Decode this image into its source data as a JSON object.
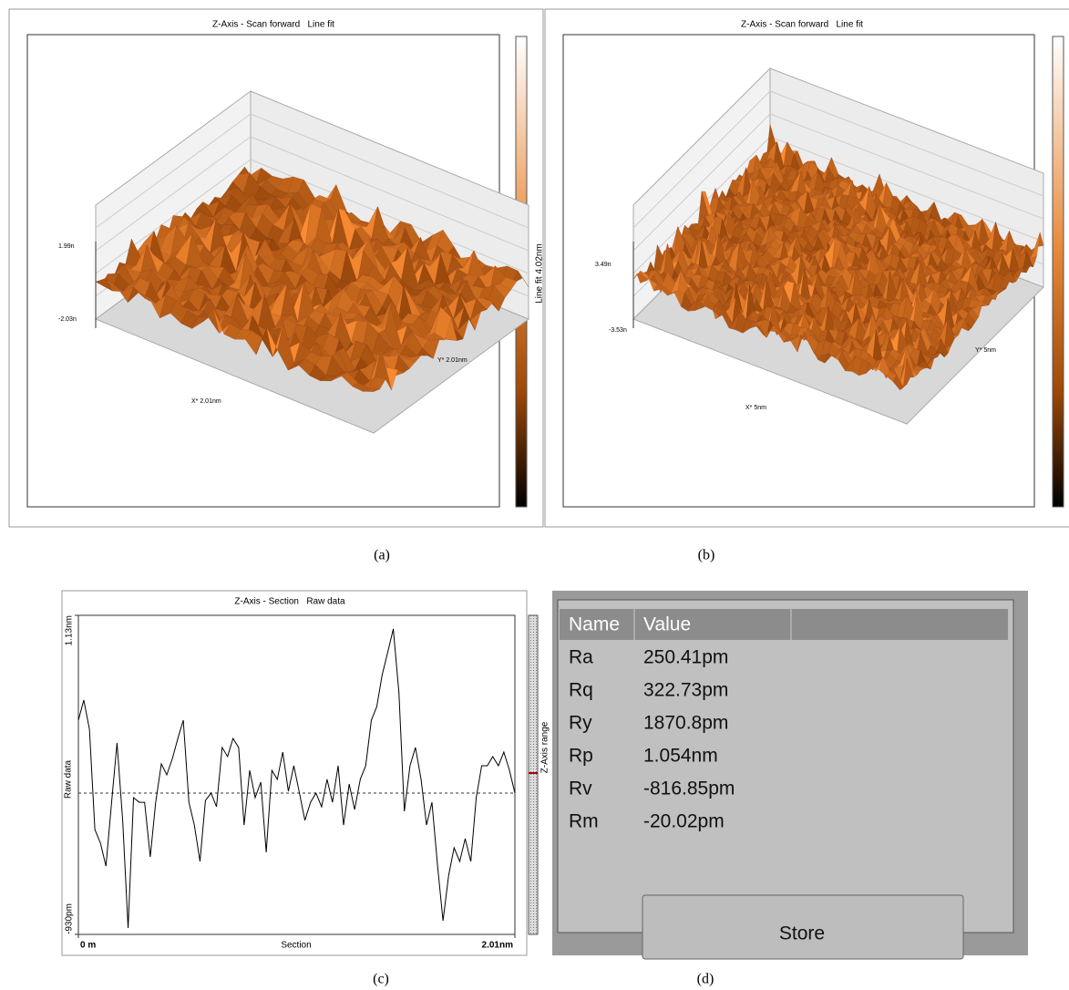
{
  "panels": [
    {
      "caption": "(a)",
      "title": "Z-Axis - Scan forward   Line fit",
      "colorbar_label": "Line fit 4.02nm",
      "z_labels": [
        "1.99n",
        "-2.03n"
      ],
      "x_label": "X* 2.01nm",
      "y_label": "Y* 2.01nm"
    },
    {
      "caption": "(b)",
      "title": "Z-Axis - Scan forward   Line fit",
      "z_labels": [
        "3.49n",
        "-3.53n"
      ],
      "x_label": "X* 5nm",
      "y_label": "Y* 5nm"
    }
  ],
  "chart_data": {
    "type": "line",
    "caption": "(c)",
    "title": "Z-Axis - Section   Raw data",
    "x_label": "Section",
    "y_label": "Raw data",
    "side_label": "Z-Axis range",
    "color": "#000000",
    "xlim": [
      0,
      2.01
    ],
    "xticks": [
      {
        "value": 0,
        "label": "0 m"
      },
      {
        "value": 2.01,
        "label": "2.01nm"
      }
    ],
    "ylim": [
      -930,
      1130
    ],
    "yticks": [
      {
        "value": -930,
        "label": "-930pm"
      },
      {
        "value": 1130,
        "label": "1.13nm"
      }
    ],
    "x": [
      0,
      0.025,
      0.051,
      0.076,
      0.102,
      0.127,
      0.153,
      0.178,
      0.204,
      0.229,
      0.254,
      0.28,
      0.305,
      0.331,
      0.356,
      0.382,
      0.407,
      0.433,
      0.458,
      0.483,
      0.509,
      0.534,
      0.56,
      0.585,
      0.611,
      0.636,
      0.662,
      0.687,
      0.712,
      0.738,
      0.763,
      0.789,
      0.814,
      0.84,
      0.865,
      0.891,
      0.916,
      0.941,
      0.967,
      0.992,
      1.018,
      1.043,
      1.069,
      1.094,
      1.12,
      1.145,
      1.17,
      1.196,
      1.221,
      1.247,
      1.272,
      1.298,
      1.323,
      1.349,
      1.374,
      1.399,
      1.425,
      1.45,
      1.476,
      1.501,
      1.527,
      1.552,
      1.578,
      1.603,
      1.628,
      1.654,
      1.679,
      1.705,
      1.73,
      1.756,
      1.781,
      1.807,
      1.832,
      1.857,
      1.883,
      1.908,
      1.934,
      1.959,
      1.985,
      2.01
    ],
    "values": [
      453,
      583,
      394,
      -253,
      -342,
      -489,
      -77,
      306,
      -194,
      -889,
      -47,
      -77,
      -77,
      -430,
      -77,
      171,
      100,
      206,
      335,
      453,
      -77,
      -224,
      -459,
      -65,
      -18,
      -106,
      277,
      218,
      335,
      277,
      -224,
      129,
      -47,
      53,
      -400,
      129,
      71,
      247,
      -6,
      159,
      -18,
      -194,
      -77,
      -18,
      -106,
      71,
      -77,
      159,
      -224,
      41,
      -124,
      71,
      159,
      453,
      541,
      747,
      895,
      1042,
      630,
      -135,
      159,
      277,
      71,
      -224,
      -77,
      -489,
      -842,
      -548,
      -371,
      -459,
      -312,
      -459,
      -47,
      159,
      159,
      218,
      159,
      247,
      129,
      -18
    ]
  },
  "table": {
    "caption": "(d)",
    "columns": [
      "Name",
      "Value"
    ],
    "rows": [
      [
        "Ra",
        "250.41pm"
      ],
      [
        "Rq",
        "322.73pm"
      ],
      [
        "Ry",
        "1870.8pm"
      ],
      [
        "Rp",
        "1.054nm"
      ],
      [
        "Rv",
        "-816.85pm"
      ],
      [
        "Rm",
        "-20.02pm"
      ]
    ],
    "button": "Store"
  }
}
